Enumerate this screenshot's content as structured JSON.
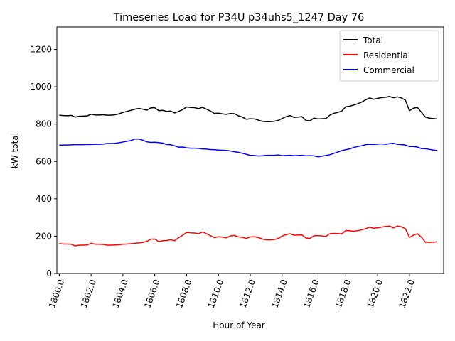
{
  "chart_data": {
    "type": "line",
    "title": "Timeseries Load for P34U p34uhs5_1247  Day 76",
    "xlabel": "Hour of Year",
    "ylabel": "kW total",
    "xlim": [
      1799.85,
      1824.15
    ],
    "ylim": [
      0,
      1320
    ],
    "x_ticks": [
      1800,
      1802,
      1804,
      1806,
      1808,
      1810,
      1812,
      1814,
      1816,
      1818,
      1820,
      1822
    ],
    "x_tick_labels": [
      "1800.0",
      "1802.0",
      "1804.0",
      "1806.0",
      "1808.0",
      "1810.0",
      "1812.0",
      "1814.0",
      "1816.0",
      "1818.0",
      "1820.0",
      "1822.0"
    ],
    "y_ticks": [
      0,
      200,
      400,
      600,
      800,
      1000,
      1200
    ],
    "y_tick_labels": [
      "0",
      "200",
      "400",
      "600",
      "800",
      "1000",
      "1200"
    ],
    "grid": false,
    "legend_position": "top-right",
    "x": [
      1800.0,
      1800.25,
      1800.5,
      1800.75,
      1801.0,
      1801.25,
      1801.5,
      1801.75,
      1802.0,
      1802.25,
      1802.5,
      1802.75,
      1803.0,
      1803.25,
      1803.5,
      1803.75,
      1804.0,
      1804.25,
      1804.5,
      1804.75,
      1805.0,
      1805.25,
      1805.5,
      1805.75,
      1806.0,
      1806.25,
      1806.5,
      1806.75,
      1807.0,
      1807.25,
      1807.5,
      1807.75,
      1808.0,
      1808.25,
      1808.5,
      1808.75,
      1809.0,
      1809.25,
      1809.5,
      1809.75,
      1810.0,
      1810.25,
      1810.5,
      1810.75,
      1811.0,
      1811.25,
      1811.5,
      1811.75,
      1812.0,
      1812.25,
      1812.5,
      1812.75,
      1813.0,
      1813.25,
      1813.5,
      1813.75,
      1814.0,
      1814.25,
      1814.5,
      1814.75,
      1815.0,
      1815.25,
      1815.5,
      1815.75,
      1816.0,
      1816.25,
      1816.5,
      1816.75,
      1817.0,
      1817.25,
      1817.5,
      1817.75,
      1818.0,
      1818.25,
      1818.5,
      1818.75,
      1819.0,
      1819.25,
      1819.5,
      1819.75,
      1820.0,
      1820.25,
      1820.5,
      1820.75,
      1821.0,
      1821.25,
      1821.5,
      1821.75,
      1822.0,
      1822.25,
      1822.5,
      1822.75,
      1823.0,
      1823.25,
      1823.5,
      1823.75
    ],
    "series": [
      {
        "name": "Total",
        "color": "#000000",
        "values": [
          848,
          846,
          845,
          847,
          838,
          842,
          843,
          844,
          853,
          849,
          849,
          850,
          848,
          848,
          850,
          855,
          863,
          868,
          874,
          880,
          884,
          880,
          875,
          887,
          888,
          872,
          874,
          868,
          870,
          860,
          868,
          878,
          892,
          889,
          888,
          883,
          890,
          880,
          870,
          857,
          859,
          855,
          852,
          857,
          856,
          845,
          838,
          826,
          829,
          828,
          822,
          815,
          813,
          813,
          815,
          820,
          830,
          840,
          846,
          836,
          838,
          840,
          820,
          818,
          832,
          828,
          829,
          830,
          848,
          858,
          863,
          870,
          893,
          896,
          902,
          909,
          918,
          930,
          940,
          933,
          938,
          942,
          944,
          948,
          941,
          946,
          940,
          928,
          872,
          885,
          890,
          864,
          838,
          832,
          830,
          828
        ]
      },
      {
        "name": "Residential",
        "color": "#ff0000",
        "values": [
          161,
          158,
          158,
          157,
          148,
          152,
          152,
          153,
          162,
          157,
          157,
          156,
          152,
          152,
          153,
          154,
          157,
          158,
          160,
          162,
          164,
          167,
          172,
          184,
          185,
          170,
          176,
          177,
          181,
          176,
          192,
          205,
          220,
          218,
          217,
          213,
          223,
          213,
          203,
          192,
          197,
          195,
          191,
          201,
          204,
          196,
          194,
          188,
          196,
          197,
          193,
          185,
          180,
          180,
          182,
          188,
          200,
          208,
          213,
          205,
          206,
          207,
          190,
          188,
          202,
          203,
          201,
          199,
          213,
          215,
          214,
          212,
          230,
          229,
          226,
          229,
          234,
          240,
          248,
          242,
          245,
          248,
          252,
          254,
          244,
          254,
          250,
          240,
          193,
          205,
          213,
          195,
          168,
          167,
          168,
          170
        ]
      },
      {
        "name": "Commercial",
        "color": "#0000ff",
        "values": [
          687,
          688,
          688,
          689,
          690,
          690,
          690,
          691,
          691,
          692,
          692,
          693,
          696,
          696,
          697,
          700,
          704,
          708,
          712,
          720,
          720,
          714,
          705,
          702,
          703,
          701,
          698,
          691,
          689,
          684,
          676,
          677,
          673,
          671,
          671,
          670,
          667,
          666,
          664,
          663,
          661,
          660,
          659,
          656,
          652,
          649,
          644,
          638,
          633,
          632,
          629,
          630,
          633,
          633,
          633,
          635,
          631,
          632,
          633,
          631,
          632,
          633,
          630,
          631,
          630,
          625,
          628,
          632,
          636,
          643,
          650,
          658,
          663,
          667,
          675,
          680,
          684,
          690,
          692,
          691,
          693,
          694,
          692,
          695,
          697,
          692,
          690,
          688,
          680,
          680,
          677,
          669,
          668,
          665,
          661,
          658
        ]
      }
    ]
  }
}
